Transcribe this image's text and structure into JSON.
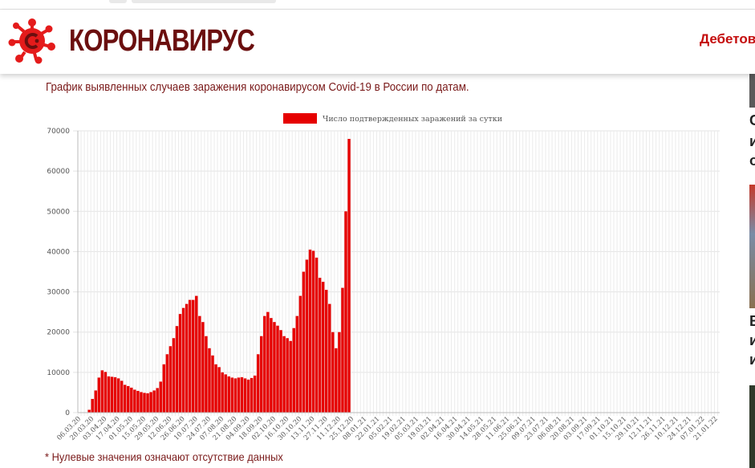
{
  "site": {
    "brand": "КОРОНАВИРУС",
    "nav_link": "Дебетов"
  },
  "caption": "График выявленных случаев заражения коронавирусом Covid-19 в России по датам.",
  "footnote": "* Нулевые значения означают отсутствие данных",
  "sidebar": {
    "letters": [
      "С",
      "и",
      "о",
      "В",
      "и",
      "и"
    ]
  },
  "colors": {
    "bar": "#e60000",
    "brand": "#6b0f0f",
    "accent": "#c40c0c"
  },
  "chart_data": {
    "type": "bar",
    "legend": "Число подтвержденных заражений за сутки",
    "legend_position": "top",
    "grid": true,
    "ylim": [
      0,
      70000
    ],
    "yticks": [
      0,
      10000,
      20000,
      30000,
      40000,
      50000,
      60000,
      70000
    ],
    "xticks": [
      "06.03.20",
      "20.03.20",
      "03.04.20",
      "17.04.20",
      "01.05.20",
      "15.05.20",
      "29.05.20",
      "12.06.20",
      "26.06.20",
      "10.07.20",
      "24.07.20",
      "07.08.20",
      "21.08.20",
      "04.09.20",
      "18.09.20",
      "02.10.20",
      "16.10.20",
      "30.10.20",
      "13.11.20",
      "27.11.20",
      "11.12.20",
      "25.12.20",
      "08.01.21",
      "22.01.21",
      "05.02.21",
      "19.02.21",
      "05.03.21",
      "19.03.21",
      "02.04.21",
      "16.04.21",
      "30.04.21",
      "14.05.21",
      "28.05.21",
      "11.06.21",
      "25.06.21",
      "09.07.21",
      "23.07.21",
      "06.08.21",
      "20.08.21",
      "03.09.21",
      "17.09.21",
      "01.10.21",
      "15.10.21",
      "29.10.21",
      "12.11.21",
      "26.11.21",
      "10.12.21",
      "24.12.21",
      "07.01.22",
      "21.01.22"
    ],
    "series": [
      {
        "name": "Число подтвержденных заражений за сутки",
        "x_start": "06.03.20",
        "step_days": 7,
        "values": [
          0,
          10,
          100,
          700,
          3400,
          5500,
          8700,
          10500,
          10100,
          9000,
          8900,
          8800,
          8500,
          7900,
          6900,
          6600,
          6200,
          5700,
          5400,
          5100,
          4900,
          4800,
          5100,
          5500,
          6100,
          7700,
          12000,
          14500,
          16500,
          18500,
          21500,
          24500,
          26000,
          27000,
          28000,
          28000,
          29000,
          24000,
          22500,
          19000,
          16000,
          14200,
          12000,
          11300,
          10000,
          9500,
          9000,
          8700,
          8500,
          8700,
          8800,
          8500,
          8200,
          8600,
          9200,
          14500,
          19000,
          24000,
          25000,
          23500,
          22500,
          21600,
          20500,
          19000,
          18500,
          17800,
          21000,
          24000,
          29000,
          35000,
          38000,
          40500,
          40200,
          38500,
          33500,
          32500,
          30500,
          27000,
          20000,
          16000,
          20000,
          31000,
          50000,
          68000
        ]
      }
    ]
  }
}
